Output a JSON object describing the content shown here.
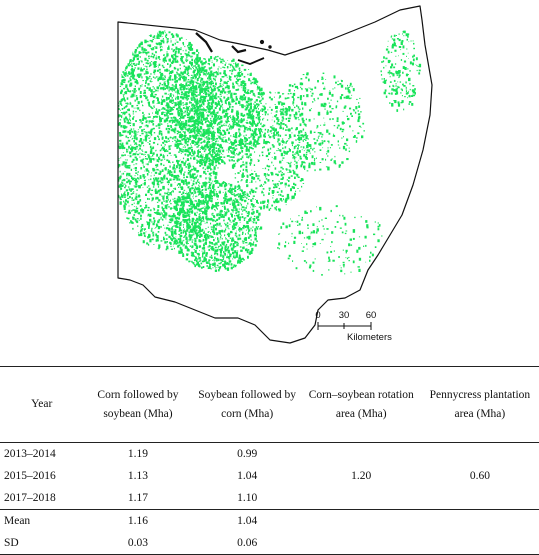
{
  "map": {
    "state": "Ohio",
    "crop_color": "#19e35a",
    "outline_color": "#111111",
    "scale_ticks": [
      "0",
      "30",
      "60"
    ],
    "scale_unit": "Kilometers"
  },
  "table": {
    "headers": [
      "Year",
      "Corn followed by soybean (Mha)",
      "Soybean followed by corn (Mha)",
      "Corn–soybean rotation area (Mha)",
      "Pennycress plantation area (Mha)"
    ],
    "rows": [
      {
        "year": "2013–2014",
        "corn_soy": "1.19",
        "soy_corn": "0.99"
      },
      {
        "year": "2015–2016",
        "corn_soy": "1.13",
        "soy_corn": "1.04"
      },
      {
        "year": "2017–2018",
        "corn_soy": "1.17",
        "soy_corn": "1.10"
      }
    ],
    "rotation_area": "1.20",
    "pennycress_area": "0.60",
    "mean": {
      "label": "Mean",
      "corn_soy": "1.16",
      "soy_corn": "1.04"
    },
    "sd": {
      "label": "SD",
      "corn_soy": "0.03",
      "soy_corn": "0.06"
    }
  }
}
